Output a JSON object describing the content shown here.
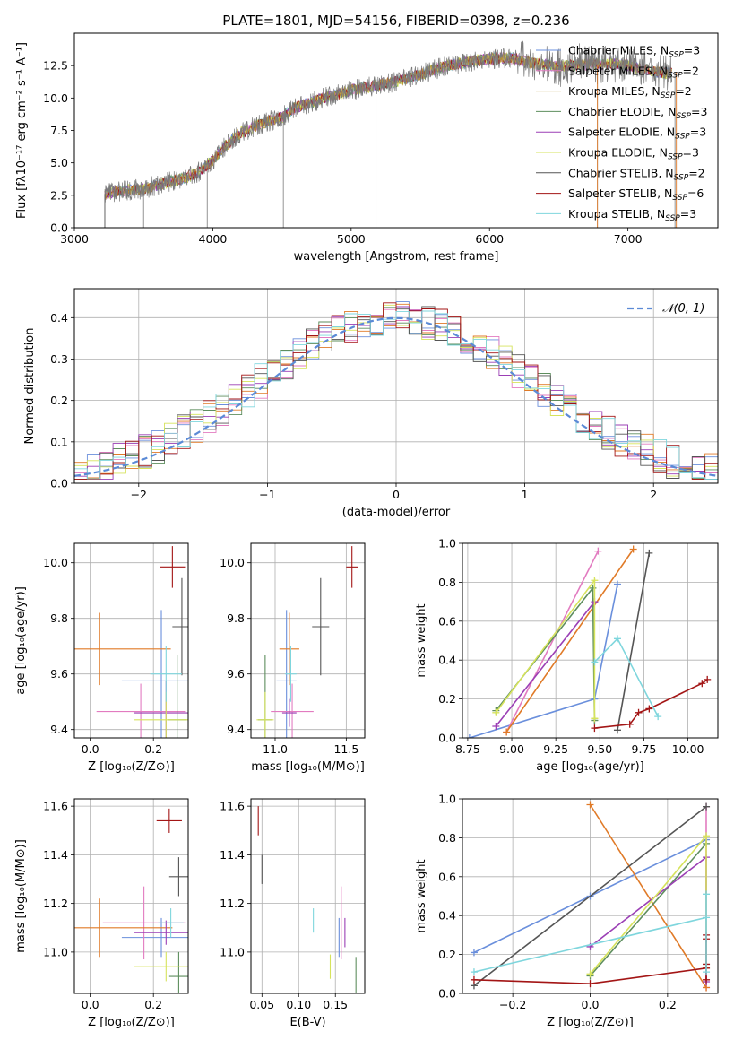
{
  "chart_data": [
    {
      "id": "spectrum",
      "type": "line",
      "title": "PLATE=1801, MJD=54156, FIBERID=0398, z=0.236",
      "xlabel": "wavelength [Angstrom, rest frame]",
      "ylabel": "Flux [fλ10⁻¹⁷ erg cm⁻² s⁻¹ A⁻¹]",
      "xlim": [
        3000,
        7650
      ],
      "ylim": [
        0,
        15
      ],
      "xticks": [
        "3000",
        "4000",
        "5000",
        "6000",
        "7000"
      ],
      "yticks": [
        "0.0",
        "2.5",
        "5.0",
        "7.5",
        "10.0",
        "12.5"
      ],
      "legend_position": "right",
      "continuum": {
        "x": [
          3220,
          3300,
          3400,
          3500,
          3600,
          3700,
          3800,
          3900,
          4000,
          4100,
          4200,
          4300,
          4400,
          4500,
          4600,
          4700,
          4800,
          4900,
          5000,
          5100,
          5200,
          5300,
          5400,
          5500,
          5600,
          5700,
          5800,
          5900,
          6000,
          6100,
          6200,
          6300,
          6400,
          6500,
          6600,
          6700,
          6800,
          6900,
          7000,
          7100,
          7200,
          7300
        ],
        "y": [
          2.6,
          2.8,
          2.9,
          3.0,
          3.3,
          3.6,
          3.8,
          4.3,
          5.2,
          6.4,
          7.3,
          7.8,
          8.2,
          8.5,
          9.3,
          9.6,
          10.0,
          10.3,
          10.6,
          10.8,
          11.0,
          11.2,
          11.5,
          11.8,
          12.2,
          12.5,
          12.7,
          12.9,
          13.0,
          13.1,
          13.0,
          12.7,
          12.6,
          12.4,
          12.5,
          12.6,
          12.6,
          12.7,
          12.5,
          12.3,
          12.0,
          11.9
        ]
      },
      "series": [
        {
          "name": "Chabrier MILES, N_SSP=3",
          "label": "Chabrier MILES, N",
          "sub": "SSP",
          "suffix": "=3",
          "color": "#6a8fdc"
        },
        {
          "name": "Salpeter MILES, N_SSP=2",
          "label": "Salpeter MILES, N",
          "sub": "SSP",
          "suffix": "=2",
          "color": "#e27bc0"
        },
        {
          "name": "Kroupa MILES, N_SSP=2",
          "label": "Kroupa MILES, N",
          "sub": "SSP",
          "suffix": "=2",
          "color": "#b89a3c"
        },
        {
          "name": "Chabrier ELODIE, N_SSP=3",
          "label": "Chabrier ELODIE, N",
          "sub": "SSP",
          "suffix": "=3",
          "color": "#5e8e5e"
        },
        {
          "name": "Salpeter ELODIE, N_SSP=3",
          "label": "Salpeter ELODIE, N",
          "sub": "SSP",
          "suffix": "=3",
          "color": "#9b3fb5"
        },
        {
          "name": "Kroupa ELODIE, N_SSP=3",
          "label": "Kroupa ELODIE, N",
          "sub": "SSP",
          "suffix": "=3",
          "color": "#d6e35c"
        },
        {
          "name": "Chabrier STELIB, N_SSP=2",
          "label": "Chabrier STELIB, N",
          "sub": "SSP",
          "suffix": "=2",
          "color": "#555555"
        },
        {
          "name": "Salpeter STELIB, N_SSP=6",
          "label": "Salpeter STELIB, N",
          "sub": "SSP",
          "suffix": "=6",
          "color": "#a31515"
        },
        {
          "name": "Kroupa STELIB, N_SSP=3",
          "label": "Kroupa STELIB, N",
          "sub": "SSP",
          "suffix": "=3",
          "color": "#7fd6dd"
        }
      ]
    },
    {
      "id": "residuals",
      "type": "histogram",
      "xlabel": "(data-model)/error",
      "ylabel": "Normed distribution",
      "xlim": [
        -2.5,
        2.5
      ],
      "ylim": [
        0,
        0.47
      ],
      "xticks": [
        "−2",
        "−1",
        "0",
        "1",
        "2"
      ],
      "yticks": [
        "0.0",
        "0.1",
        "0.2",
        "0.3",
        "0.4"
      ],
      "grid": true,
      "legend": "𝒩(0, 1)",
      "legend_position": "top-right",
      "normal_curve": {
        "mean": 0,
        "sigma": 1,
        "color": "#5b8ad6"
      },
      "bin_width": 0.1,
      "hist_colors": [
        "#6a8fdc",
        "#e27bc0",
        "#e07a27",
        "#5e8e5e",
        "#9b3fb5",
        "#d6e35c",
        "#555555",
        "#a31515",
        "#7fd6dd"
      ]
    },
    {
      "id": "age-vs-Z",
      "type": "errorbar",
      "xlabel": "Z [log₁₀(Z/Z⊙)]",
      "ylabel": "age  [log₁₀(age/yr)]",
      "xlim": [
        -0.05,
        0.31
      ],
      "ylim": [
        9.37,
        10.07
      ],
      "xticks": [
        "0.0",
        "0.2"
      ],
      "yticks": [
        "9.4",
        "9.6",
        "9.8",
        "10.0"
      ],
      "grid": true,
      "points": [
        {
          "x": 0.225,
          "y": 9.575,
          "xerr": 0.125,
          "yerr": 0.255,
          "color": "#6a8fdc"
        },
        {
          "x": 0.16,
          "y": 9.465,
          "xerr": 0.14,
          "yerr": 0.1,
          "color": "#e27bc0"
        },
        {
          "x": 0.03,
          "y": 9.69,
          "xerr": 0.225,
          "yerr": 0.13,
          "color": "#e07a27"
        },
        {
          "x": 0.275,
          "y": 9.435,
          "xerr": 0.03,
          "yerr": 0.235,
          "color": "#5e8e5e"
        },
        {
          "x": 0.24,
          "y": 9.46,
          "xerr": 0.1,
          "yerr": 0.115,
          "color": "#9b3fb5"
        },
        {
          "x": 0.24,
          "y": 9.435,
          "xerr": 0.1,
          "yerr": 0.1,
          "color": "#d6e35c"
        },
        {
          "x": 0.29,
          "y": 9.77,
          "xerr": 0.03,
          "yerr": 0.175,
          "color": "#555555"
        },
        {
          "x": 0.26,
          "y": 9.985,
          "xerr": 0.04,
          "yerr": 0.075,
          "color": "#a31515"
        },
        {
          "x": 0.24,
          "y": 9.6,
          "xerr": 0.05,
          "yerr": 0.1,
          "color": "#7fd6dd"
        }
      ]
    },
    {
      "id": "age-vs-mass",
      "type": "errorbar",
      "xlabel": "mass [log₁₀(M/M⊙)]",
      "xlim": [
        10.83,
        11.63
      ],
      "ylim": [
        9.37,
        10.07
      ],
      "xticks": [
        "11.0",
        "11.5"
      ],
      "yticks": [
        "9.4",
        "9.6",
        "9.8",
        "10.0"
      ],
      "grid": true,
      "points": [
        {
          "x": 11.08,
          "y": 9.575,
          "xerr": 0.07,
          "yerr": 0.255,
          "color": "#6a8fdc"
        },
        {
          "x": 11.12,
          "y": 9.465,
          "xerr": 0.15,
          "yerr": 0.1,
          "color": "#e27bc0"
        },
        {
          "x": 11.1,
          "y": 9.69,
          "xerr": 0.07,
          "yerr": 0.13,
          "color": "#e07a27"
        },
        {
          "x": 10.93,
          "y": 9.435,
          "xerr": 0.05,
          "yerr": 0.235,
          "color": "#5e8e5e"
        },
        {
          "x": 11.1,
          "y": 9.46,
          "xerr": 0.05,
          "yerr": 0.05,
          "color": "#9b3fb5"
        },
        {
          "x": 10.93,
          "y": 9.435,
          "xerr": 0.06,
          "yerr": 0.1,
          "color": "#d6e35c"
        },
        {
          "x": 11.32,
          "y": 9.77,
          "xerr": 0.06,
          "yerr": 0.175,
          "color": "#555555"
        },
        {
          "x": 11.54,
          "y": 9.985,
          "xerr": 0.04,
          "yerr": 0.075,
          "color": "#a31515"
        },
        {
          "x": 11.11,
          "y": 9.6,
          "xerr": 0.04,
          "yerr": 0.1,
          "color": "#7fd6dd"
        }
      ]
    },
    {
      "id": "weight-vs-age",
      "type": "line",
      "xlabel": "age  [log₁₀(age/yr)]",
      "ylabel": "mass weight",
      "xlim": [
        8.72,
        10.17
      ],
      "ylim": [
        0,
        1
      ],
      "xticks": [
        "8.75",
        "9.00",
        "9.25",
        "9.50",
        "9.75",
        "10.00"
      ],
      "yticks": [
        "0.0",
        "0.2",
        "0.4",
        "0.6",
        "0.8",
        "1.0"
      ],
      "grid": true,
      "series": [
        {
          "color": "#6a8fdc",
          "x": [
            8.76,
            9.47,
            9.6
          ],
          "y": [
            0.0,
            0.2,
            0.79
          ]
        },
        {
          "color": "#e27bc0",
          "x": [
            8.97,
            9.49
          ],
          "y": [
            0.03,
            0.96
          ]
        },
        {
          "color": "#e07a27",
          "x": [
            8.97,
            9.69
          ],
          "y": [
            0.03,
            0.97
          ]
        },
        {
          "color": "#5e8e5e",
          "x": [
            8.91,
            9.46,
            9.47,
            9.47
          ],
          "y": [
            0.14,
            0.77,
            0.09,
            0.09
          ]
        },
        {
          "color": "#9b3fb5",
          "x": [
            8.91,
            9.47,
            9.47
          ],
          "y": [
            0.06,
            0.7,
            0.7
          ]
        },
        {
          "color": "#d6e35c",
          "x": [
            8.91,
            9.47,
            9.47,
            9.47
          ],
          "y": [
            0.13,
            0.81,
            0.1,
            0.1
          ]
        },
        {
          "color": "#555555",
          "x": [
            9.6,
            9.78
          ],
          "y": [
            0.04,
            0.95
          ]
        },
        {
          "color": "#a31515",
          "x": [
            9.47,
            9.67,
            9.72,
            9.78,
            10.08,
            10.11
          ],
          "y": [
            0.05,
            0.07,
            0.13,
            0.15,
            0.28,
            0.3
          ]
        },
        {
          "color": "#7fd6dd",
          "x": [
            9.47,
            9.6,
            9.83
          ],
          "y": [
            0.39,
            0.51,
            0.11
          ]
        }
      ]
    },
    {
      "id": "mass-vs-Z",
      "type": "errorbar",
      "xlabel": "Z [log₁₀(Z/Z⊙)]",
      "ylabel": "mass [log₁₀(M/M⊙)]",
      "xlim": [
        -0.05,
        0.31
      ],
      "ylim": [
        10.83,
        11.63
      ],
      "xticks": [
        "0.0",
        "0.2"
      ],
      "yticks": [
        "11.0",
        "11.2",
        "11.4",
        "11.6"
      ],
      "grid": true,
      "points": [
        {
          "x": 0.225,
          "y": 11.06,
          "xerr": 0.125,
          "yerr": 0.08,
          "color": "#6a8fdc"
        },
        {
          "x": 0.17,
          "y": 11.12,
          "xerr": 0.13,
          "yerr": 0.15,
          "color": "#e27bc0"
        },
        {
          "x": 0.03,
          "y": 11.1,
          "xerr": 0.23,
          "yerr": 0.12,
          "color": "#e07a27"
        },
        {
          "x": 0.28,
          "y": 10.9,
          "xerr": 0.03,
          "yerr": 0.1,
          "color": "#5e8e5e"
        },
        {
          "x": 0.24,
          "y": 11.08,
          "xerr": 0.1,
          "yerr": 0.05,
          "color": "#9b3fb5"
        },
        {
          "x": 0.24,
          "y": 10.94,
          "xerr": 0.1,
          "yerr": 0.06,
          "color": "#d6e35c"
        },
        {
          "x": 0.28,
          "y": 11.31,
          "xerr": 0.03,
          "yerr": 0.08,
          "color": "#555555"
        },
        {
          "x": 0.25,
          "y": 11.54,
          "xerr": 0.04,
          "yerr": 0.05,
          "color": "#a31515"
        },
        {
          "x": 0.255,
          "y": 11.12,
          "xerr": 0.04,
          "yerr": 0.06,
          "color": "#7fd6dd"
        }
      ]
    },
    {
      "id": "mass-vs-EBV",
      "type": "errorbar",
      "xlabel": "E(B-V)",
      "xlim": [
        0.035,
        0.19
      ],
      "ylim": [
        10.83,
        11.63
      ],
      "xticks": [
        "0.05",
        "0.10",
        "0.15"
      ],
      "yticks": [
        "11.0",
        "11.2",
        "11.4",
        "11.6"
      ],
      "grid": true,
      "points": [
        {
          "x": 0.155,
          "y": 11.06,
          "xerr": 0,
          "yerr": 0.08,
          "color": "#6a8fdc"
        },
        {
          "x": 0.158,
          "y": 11.12,
          "xerr": 0,
          "yerr": 0.15,
          "color": "#e27bc0"
        },
        {
          "x": 0.143,
          "y": 10.94,
          "xerr": 0,
          "yerr": 0.05,
          "color": "#d6e35c"
        },
        {
          "x": 0.163,
          "y": 11.08,
          "xerr": 0,
          "yerr": 0.06,
          "color": "#9b3fb5"
        },
        {
          "x": 0.178,
          "y": 10.9,
          "xerr": 0,
          "yerr": 0.08,
          "color": "#5e8e5e"
        },
        {
          "x": 0.05,
          "y": 11.34,
          "xerr": 0,
          "yerr": 0.06,
          "color": "#555555"
        },
        {
          "x": 0.045,
          "y": 11.54,
          "xerr": 0,
          "yerr": 0.06,
          "color": "#a31515"
        },
        {
          "x": 0.12,
          "y": 11.13,
          "xerr": 0,
          "yerr": 0.05,
          "color": "#7fd6dd"
        }
      ]
    },
    {
      "id": "weight-vs-Z",
      "type": "line",
      "xlabel": "Z [log₁₀(Z/Z⊙)]",
      "ylabel": "mass weight",
      "xlim": [
        -0.33,
        0.33
      ],
      "ylim": [
        0,
        1
      ],
      "xticks": [
        "−0.2",
        "0.0",
        "0.2"
      ],
      "yticks": [
        "0.0",
        "0.2",
        "0.4",
        "0.6",
        "0.8",
        "1.0"
      ],
      "grid": true,
      "series": [
        {
          "color": "#6a8fdc",
          "x": [
            -0.3,
            0.0,
            0.3
          ],
          "y": [
            0.21,
            0.5,
            0.79
          ]
        },
        {
          "color": "#e27bc0",
          "x": [
            0.3,
            0.3
          ],
          "y": [
            0.96,
            0.03
          ]
        },
        {
          "color": "#e07a27",
          "x": [
            0.0,
            0.3
          ],
          "y": [
            0.97,
            0.03
          ]
        },
        {
          "color": "#5e8e5e",
          "x": [
            0.0,
            0.3
          ],
          "y": [
            0.09,
            0.77
          ]
        },
        {
          "color": "#9b3fb5",
          "x": [
            0.0,
            0.3,
            0.3
          ],
          "y": [
            0.24,
            0.7,
            0.06
          ]
        },
        {
          "color": "#d6e35c",
          "x": [
            0.0,
            0.3,
            0.3
          ],
          "y": [
            0.1,
            0.81,
            0.13
          ]
        },
        {
          "color": "#555555",
          "x": [
            -0.3,
            0.3
          ],
          "y": [
            0.04,
            0.96
          ]
        },
        {
          "color": "#a31515",
          "x": [
            -0.3,
            0.0,
            0.3,
            0.3,
            0.3,
            0.3,
            0.3
          ],
          "y": [
            0.07,
            0.05,
            0.13,
            0.15,
            0.28,
            0.3,
            0.07
          ]
        },
        {
          "color": "#7fd6dd",
          "x": [
            -0.3,
            0.3,
            0.3,
            0.3
          ],
          "y": [
            0.11,
            0.39,
            0.51,
            0.11
          ]
        }
      ]
    }
  ]
}
